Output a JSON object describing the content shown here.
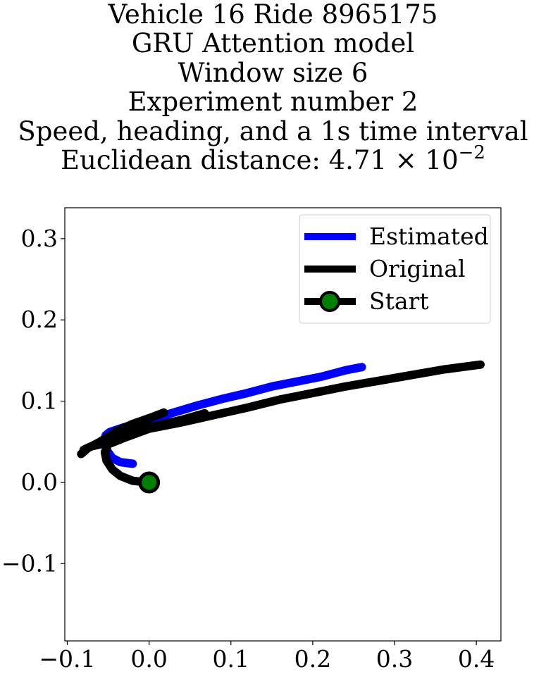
{
  "title_lines": [
    "Vehicle 16 Ride 8965175",
    "GRU Attention model",
    "Window size 6",
    "Experiment number 2",
    "Speed, heading, and a 1s time interval"
  ],
  "title_metric": {
    "prefix": "Euclidean distance: 4.71 × 10",
    "exponent": "−2"
  },
  "colors": {
    "estimated": "#0000ff",
    "original": "#000000",
    "start_marker_fill": "#008000",
    "start_marker_edge": "#000000"
  },
  "chart_data": {
    "type": "line",
    "title": "Vehicle 16 Ride 8965175\nGRU Attention model\nWindow size 6\nExperiment number 2\nSpeed, heading, and a 1s time interval\nEuclidean distance: 4.71 × 10^−2",
    "xlabel": "",
    "ylabel": "",
    "xlim": [
      -0.103,
      0.43
    ],
    "ylim": [
      -0.195,
      0.338
    ],
    "xticks": [
      -0.1,
      0.0,
      0.1,
      0.2,
      0.3,
      0.4
    ],
    "xtick_labels": [
      "−0.1",
      "0.0",
      "0.1",
      "0.2",
      "0.3",
      "0.4"
    ],
    "yticks": [
      -0.1,
      0.0,
      0.1,
      0.2,
      0.3
    ],
    "ytick_labels": [
      "−0.1",
      "0.0",
      "0.1",
      "0.2",
      "0.3"
    ],
    "grid": false,
    "legend": {
      "position": "upper right",
      "entries": [
        "Estimated",
        "Original",
        "Start"
      ]
    },
    "series": [
      {
        "name": "Estimated",
        "color": "#0000ff",
        "points": [
          [
            -0.02,
            0.023
          ],
          [
            -0.035,
            0.025
          ],
          [
            -0.045,
            0.03
          ],
          [
            -0.052,
            0.04
          ],
          [
            -0.055,
            0.05
          ],
          [
            -0.053,
            0.058
          ],
          [
            -0.048,
            0.062
          ],
          [
            -0.03,
            0.068
          ],
          [
            -0.01,
            0.074
          ],
          [
            0.01,
            0.08
          ],
          [
            0.03,
            0.086
          ],
          [
            0.06,
            0.095
          ],
          [
            0.09,
            0.103
          ],
          [
            0.12,
            0.11
          ],
          [
            0.15,
            0.118
          ],
          [
            0.18,
            0.124
          ],
          [
            0.21,
            0.13
          ],
          [
            0.24,
            0.138
          ],
          [
            0.26,
            0.142
          ]
        ]
      },
      {
        "name": "Original",
        "color": "#000000",
        "points": [
          [
            0.0,
            0.0
          ],
          [
            -0.02,
            0.002
          ],
          [
            -0.035,
            0.008
          ],
          [
            -0.045,
            0.016
          ],
          [
            -0.052,
            0.027
          ],
          [
            -0.054,
            0.037
          ],
          [
            -0.05,
            0.047
          ],
          [
            -0.03,
            0.055
          ],
          [
            0.0,
            0.066
          ],
          [
            0.04,
            0.074
          ],
          [
            0.08,
            0.083
          ],
          [
            0.12,
            0.092
          ],
          [
            0.16,
            0.102
          ],
          [
            0.2,
            0.11
          ],
          [
            0.24,
            0.118
          ],
          [
            0.28,
            0.125
          ],
          [
            0.32,
            0.132
          ],
          [
            0.36,
            0.139
          ],
          [
            0.405,
            0.145
          ]
        ]
      },
      {
        "name": "Original",
        "color": "#000000",
        "points": [
          [
            0.018,
            0.086
          ],
          [
            0.0,
            0.079
          ],
          [
            -0.02,
            0.072
          ],
          [
            -0.04,
            0.063
          ],
          [
            -0.06,
            0.05
          ],
          [
            -0.075,
            0.042
          ],
          [
            -0.083,
            0.035
          ]
        ]
      },
      {
        "name": "Original",
        "color": "#000000",
        "points": [
          [
            0.068,
            0.085
          ],
          [
            0.04,
            0.077
          ],
          [
            0.0,
            0.068
          ],
          [
            -0.03,
            0.058
          ],
          [
            -0.055,
            0.048
          ],
          [
            -0.072,
            0.044
          ],
          [
            -0.08,
            0.04
          ]
        ]
      }
    ],
    "start_point": [
      0.0,
      0.0
    ]
  }
}
